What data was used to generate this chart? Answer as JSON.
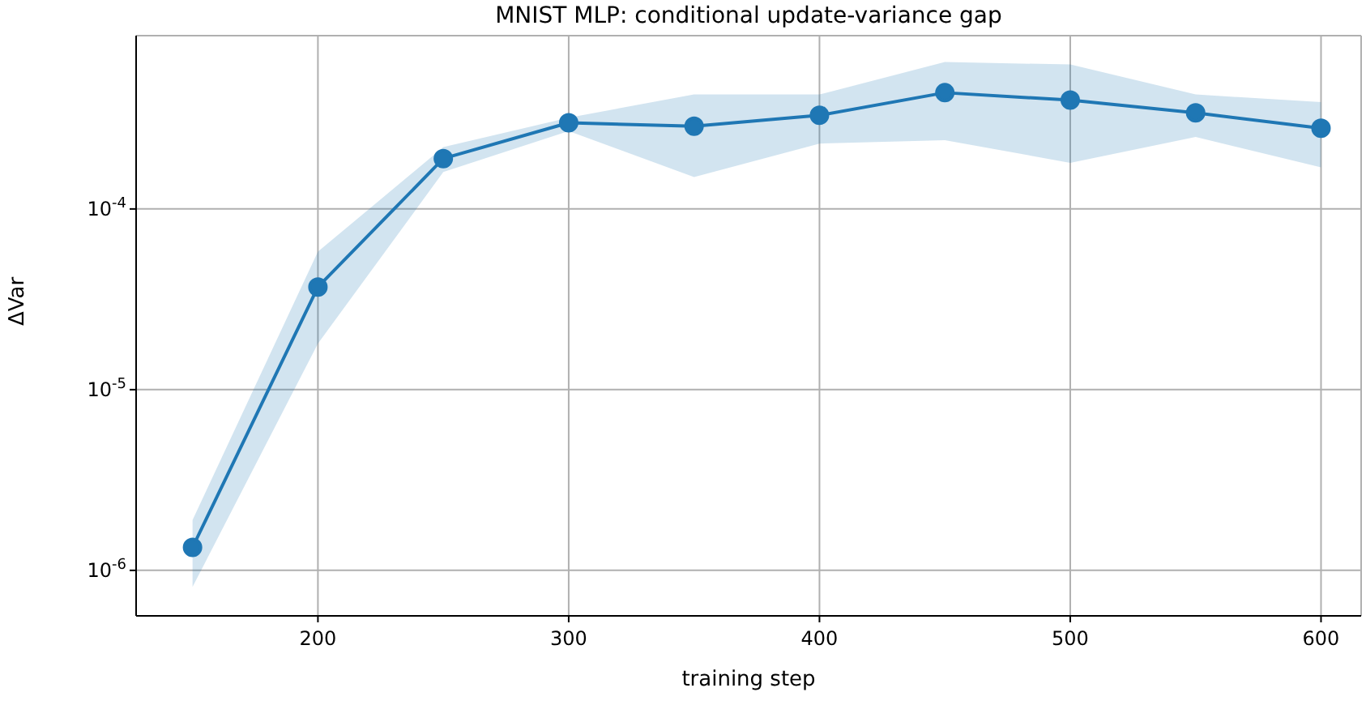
{
  "chart_data": {
    "type": "line",
    "title": "MNIST MLP: conditional update-variance gap",
    "xlabel": "training step",
    "ylabel": "ΔVar",
    "x": [
      150,
      200,
      250,
      300,
      350,
      400,
      450,
      500,
      550,
      600
    ],
    "series": [
      {
        "color": "#1f77b4",
        "values": [
          1.34e-06,
          3.7e-05,
          0.00019,
          0.0003,
          0.000287,
          0.00033,
          0.00044,
          0.0004,
          0.00034,
          0.00028
        ],
        "lower": [
          8.1e-07,
          1.8e-05,
          0.00016,
          0.00027,
          0.00015,
          0.00023,
          0.00024,
          0.00018,
          0.00025,
          0.00017
        ],
        "upper": [
          1.9e-06,
          5.8e-05,
          0.00022,
          0.00032,
          0.00043,
          0.00043,
          0.00065,
          0.00063,
          0.00043,
          0.00039
        ]
      }
    ],
    "xlim": [
      127.5,
      616
    ],
    "xticks": [
      200,
      300,
      400,
      500,
      600
    ],
    "ylim": [
      5.6e-07,
      0.00091
    ],
    "yticks": [
      {
        "value": 1e-06,
        "label": "10$^{-6}$"
      },
      {
        "value": 1e-05,
        "label": "10$^{-5}$"
      },
      {
        "value": 0.0001,
        "label": "10$^{-4}$"
      }
    ],
    "log": "y",
    "grid": true,
    "legend": false,
    "marker": "circle",
    "line_style": "solid"
  }
}
